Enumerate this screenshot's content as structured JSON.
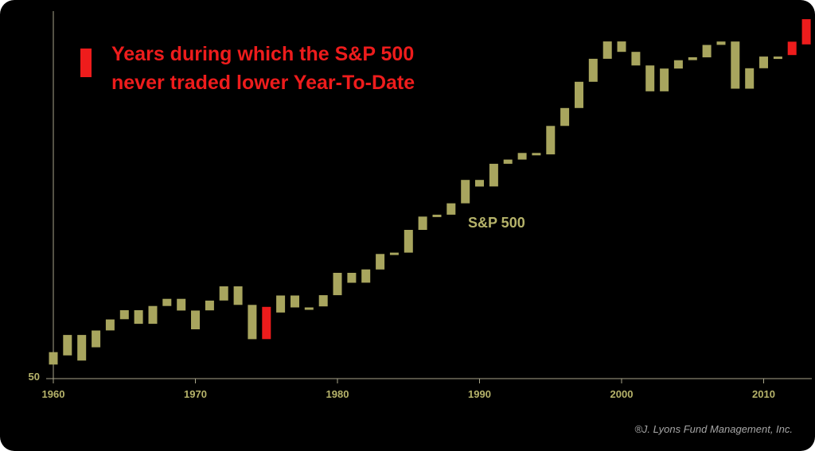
{
  "chart_data": {
    "type": "floating-bar",
    "title": "",
    "xlabel": "",
    "ylabel": "",
    "y_scale": "log",
    "x_ticks": [
      1960,
      1970,
      1980,
      1990,
      2000,
      2010
    ],
    "y_ticks": [
      50
    ],
    "colors": {
      "normal": "#a8a55e",
      "highlight": "#ee1c1c",
      "axis": "#a8a58a",
      "text": "#b6b36a"
    },
    "series": [
      {
        "name": "S&P 500",
        "color": "#a8a55e"
      }
    ],
    "legend": {
      "position": "top-left",
      "text_line1": "Years during which the S&P 500",
      "text_line2": "never traded lower Year-To-Date",
      "color": "#ee1c1c"
    },
    "years": [
      1960,
      1961,
      1962,
      1963,
      1964,
      1965,
      1966,
      1967,
      1968,
      1969,
      1970,
      1971,
      1972,
      1973,
      1974,
      1975,
      1976,
      1977,
      1978,
      1979,
      1980,
      1981,
      1982,
      1983,
      1984,
      1985,
      1986,
      1987,
      1988,
      1989,
      1990,
      1991,
      1992,
      1993,
      1994,
      1995,
      1996,
      1997,
      1998,
      1999,
      2000,
      2001,
      2002,
      2003,
      2004,
      2005,
      2006,
      2007,
      2008,
      2009,
      2010,
      2011,
      2012,
      2013
    ],
    "open": [
      60.0,
      58.0,
      71.6,
      63.1,
      75.0,
      84.2,
      92.4,
      80.3,
      96.5,
      103.9,
      92.1,
      92.2,
      102.1,
      118.1,
      97.6,
      68.6,
      90.2,
      107.5,
      95.1,
      96.1,
      107.9,
      135.8,
      122.6,
      140.6,
      164.9,
      167.2,
      211.3,
      242.2,
      247.1,
      277.7,
      353.4,
      330.2,
      417.1,
      435.7,
      466.5,
      459.3,
      615.9,
      740.7,
      970.4,
      1229.2,
      1469.3,
      1320.3,
      1148.1,
      879.8,
      1111.9,
      1211.9,
      1248.3,
      1418.3,
      1468.4,
      903.3,
      1115.1,
      1257.6,
      1257.6,
      1426.2
    ],
    "close": [
      52.8,
      71.6,
      55.0,
      75.0,
      84.0,
      92.4,
      80.3,
      96.5,
      103.9,
      92.1,
      75.9,
      102.0,
      118.1,
      97.6,
      68.6,
      90.2,
      107.5,
      95.1,
      95.1,
      107.9,
      135.8,
      122.6,
      140.6,
      164.9,
      167.2,
      211.3,
      242.2,
      247.1,
      277.7,
      353.4,
      330.2,
      417.1,
      435.7,
      466.5,
      459.3,
      615.9,
      740.7,
      970.4,
      1229.2,
      1469.3,
      1320.3,
      1148.1,
      879.8,
      1111.9,
      1211.9,
      1248.3,
      1418.3,
      1468.4,
      903.3,
      1115.1,
      1257.6,
      1257.6,
      1426.2,
      1848.4
    ],
    "highlighted_years": [
      1975,
      2012,
      2013
    ],
    "highlighted_lows": {
      "1975": 68.6,
      "2012": 1277.1,
      "2013": 1426.2
    },
    "highlighted_highs": {
      "1975": 95.6,
      "2012": 1465.8,
      "2013": 1848.4
    },
    "series_label": "S&P 500",
    "copyright": "®J. Lyons Fund Management, Inc."
  }
}
